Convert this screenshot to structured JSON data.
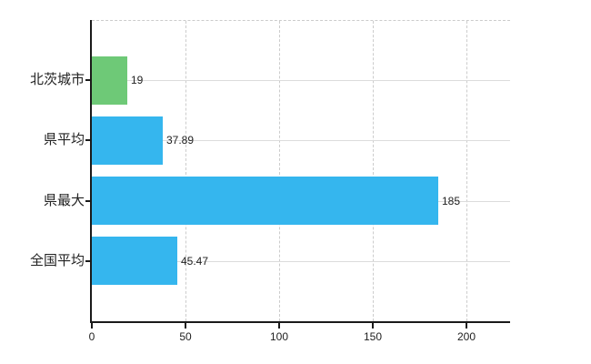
{
  "chart_data": {
    "type": "bar",
    "orientation": "horizontal",
    "title": "",
    "categories": [
      "北茨城市",
      "県平均",
      "県最大",
      "全国平均"
    ],
    "series": [
      {
        "name": "value",
        "values": [
          19,
          37.89,
          185,
          45.47
        ]
      }
    ],
    "value_labels": [
      "19",
      "37.89",
      "185",
      "45.47"
    ],
    "bar_colors": [
      "#6ec977",
      "#35b6ee",
      "#35b6ee",
      "#35b6ee"
    ],
    "x_ticks": [
      {
        "value": 0,
        "label": "0"
      },
      {
        "value": 50,
        "label": "50"
      },
      {
        "value": 100,
        "label": "100"
      },
      {
        "value": 150,
        "label": "150"
      },
      {
        "value": 200,
        "label": "200"
      }
    ],
    "xlim": [
      0,
      223.3
    ],
    "grid": true,
    "legend_position": "none",
    "colors": {
      "axis": "#1a1a1a",
      "grid_solid": "#dcdcdc",
      "grid_dashed": "#cccccc",
      "text": "#222222",
      "background": "#ffffff",
      "bar_highlight": "#6ec977",
      "bar_default": "#35b6ee"
    }
  }
}
